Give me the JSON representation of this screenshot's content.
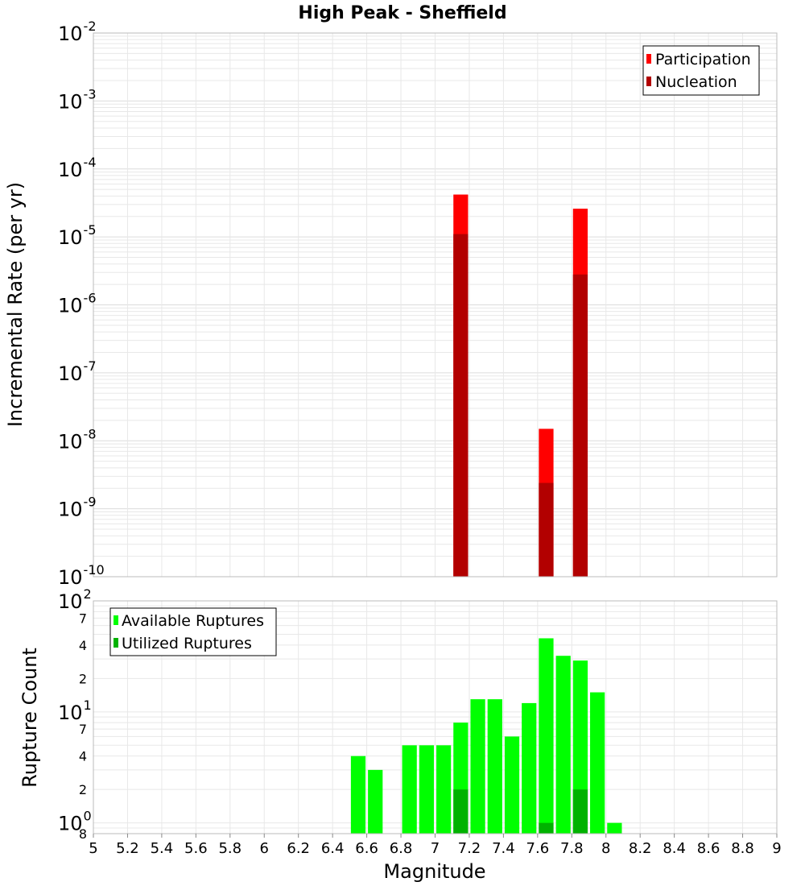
{
  "title": "High Peak - Sheffield",
  "xlabel": "Magnitude",
  "colors": {
    "participation": "#ff0000",
    "nucleation": "#b20000",
    "available": "#00ff00",
    "utilized": "#00b200",
    "grid": "#e8e8e8",
    "frame": "#bbbbbb"
  },
  "x_axis": {
    "range": [
      5,
      9
    ],
    "ticks": [
      5,
      5.2,
      5.4,
      5.6,
      5.8,
      6,
      6.2,
      6.4,
      6.6,
      6.8,
      7,
      7.2,
      7.4,
      7.6,
      7.8,
      8,
      8.2,
      8.4,
      8.6,
      8.8,
      9
    ],
    "tick_labels": [
      "5",
      "5.2",
      "5.4",
      "5.6",
      "5.8",
      "6",
      "6.2",
      "6.4",
      "6.6",
      "6.8",
      "7",
      "7.2",
      "7.4",
      "7.6",
      "7.8",
      "8",
      "8.2",
      "8.4",
      "8.6",
      "8.8",
      "9"
    ]
  },
  "chart_data": [
    {
      "type": "bar",
      "name": "rate-panel",
      "ylabel": "Incremental Rate (per yr)",
      "yscale": "log",
      "ylim": [
        1e-10,
        0.01
      ],
      "ytick_exponents": [
        "-10",
        "-9",
        "-8",
        "-7",
        "-6",
        "-5",
        "-4",
        "-3",
        "-2"
      ],
      "ytick_base": "10",
      "legend": [
        "Participation",
        "Nucleation"
      ],
      "legend_position": "top-right",
      "series": [
        {
          "name": "Participation",
          "x": [
            7.15,
            7.65,
            7.85
          ],
          "values": [
            4.2e-05,
            1.5e-08,
            2.6e-05
          ]
        },
        {
          "name": "Nucleation",
          "x": [
            7.15,
            7.65,
            7.85
          ],
          "values": [
            1.1e-05,
            2.4e-09,
            2.8e-06
          ]
        }
      ]
    },
    {
      "type": "bar",
      "name": "count-panel",
      "ylabel": "Rupture Count",
      "yscale": "log",
      "ylim": [
        0.8,
        100
      ],
      "major_ticks": [
        {
          "value": 1,
          "base": "10",
          "exp": "0"
        },
        {
          "value": 10,
          "base": "10",
          "exp": "1"
        },
        {
          "value": 100,
          "base": "10",
          "exp": "2"
        }
      ],
      "minor_ticks": [
        {
          "value": 0.8,
          "label": "8"
        },
        {
          "value": 2,
          "label": "2"
        },
        {
          "value": 4,
          "label": "4"
        },
        {
          "value": 7,
          "label": "7"
        },
        {
          "value": 20,
          "label": "2"
        },
        {
          "value": 40,
          "label": "4"
        },
        {
          "value": 70,
          "label": "7"
        }
      ],
      "legend": [
        "Available Ruptures",
        "Utilized Ruptures"
      ],
      "legend_position": "top-left",
      "series": [
        {
          "name": "Available Ruptures",
          "x": [
            6.55,
            6.65,
            6.85,
            6.95,
            7.05,
            7.15,
            7.25,
            7.35,
            7.45,
            7.55,
            7.65,
            7.75,
            7.85,
            7.95,
            8.05
          ],
          "values": [
            4,
            3,
            5,
            5,
            5,
            8,
            13,
            13,
            6,
            12,
            46,
            32,
            29,
            15,
            1
          ]
        },
        {
          "name": "Utilized Ruptures",
          "x": [
            7.15,
            7.65,
            7.85
          ],
          "values": [
            2,
            1,
            2
          ]
        }
      ]
    }
  ]
}
